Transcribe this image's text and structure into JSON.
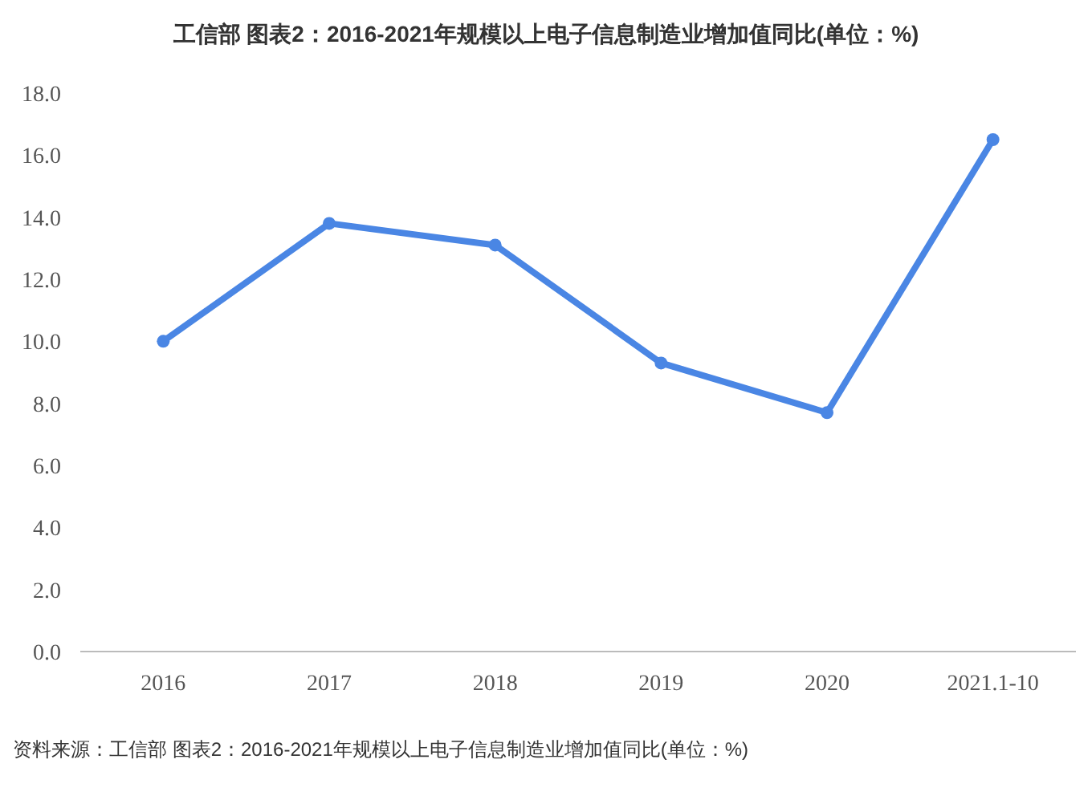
{
  "chart_data": {
    "type": "line",
    "title": "工信部 图表2：2016-2021年规模以上电子信息制造业增加值同比(单位：%)",
    "categories": [
      "2016",
      "2017",
      "2018",
      "2019",
      "2020",
      "2021.1-10"
    ],
    "series": [
      {
        "color": "#4a86e4",
        "values": [
          10.0,
          13.8,
          13.1,
          9.3,
          7.7,
          16.5
        ]
      }
    ],
    "ylim": [
      0,
      18
    ],
    "yticks": [
      {
        "value": 0,
        "label": "0.0"
      },
      {
        "value": 2,
        "label": "2.0"
      },
      {
        "value": 4,
        "label": "4.0"
      },
      {
        "value": 6,
        "label": "6.0"
      },
      {
        "value": 8,
        "label": "8.0"
      },
      {
        "value": 10,
        "label": "10.0"
      },
      {
        "value": 12,
        "label": "12.0"
      },
      {
        "value": 14,
        "label": "14.0"
      },
      {
        "value": 16,
        "label": "16.0"
      },
      {
        "value": 18,
        "label": "18.0"
      }
    ],
    "marker": "circle",
    "grid": false,
    "annotations": [
      "资料来源：工信部 图表2：2016-2021年规模以上电子信息制造业增加值同比(单位：%)"
    ]
  }
}
